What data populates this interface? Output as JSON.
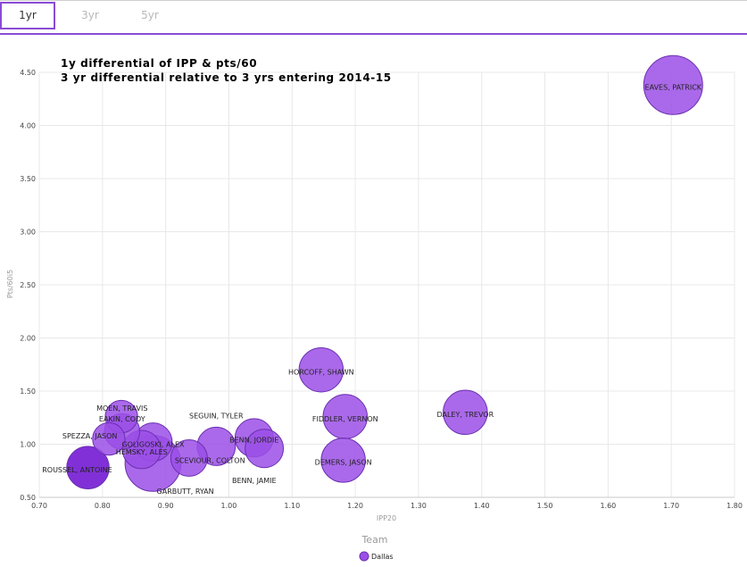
{
  "tabs": [
    {
      "label": "1yr",
      "active": true
    },
    {
      "label": "3yr",
      "active": false
    },
    {
      "label": "5yr",
      "active": false
    }
  ],
  "colors": {
    "accent": "#8a4bd6",
    "bubble_fill": "#9b4fe6",
    "bubble_stroke": "#6a2fb0",
    "bubble_dark": "#7a25d6"
  },
  "chart_data": {
    "type": "scatter",
    "title": "1y differential of IPP & pts/60",
    "subtitle": "3 yr differential relative to 3 yrs entering 2014-15",
    "xlabel": "IPP20",
    "ylabel": "Pts/60i5",
    "xlim": [
      0.7,
      1.8
    ],
    "ylim": [
      0.5,
      4.5
    ],
    "xticks": [
      "0.70",
      "0.80",
      "0.90",
      "1.00",
      "1.10",
      "1.20",
      "1.30",
      "1.40",
      "1.50",
      "1.60",
      "1.70",
      "1.80"
    ],
    "yticks": [
      "0.50",
      "1.00",
      "1.50",
      "2.00",
      "2.50",
      "3.00",
      "3.50",
      "4.00",
      "4.50"
    ],
    "grid": true,
    "legend": {
      "title": "Team",
      "placement": "bottom-center",
      "entries": [
        "Dallas"
      ]
    },
    "series": [
      {
        "name": "Dallas",
        "points": [
          {
            "label": "EAVES, PATRICK",
            "x": 1.703,
            "y": 4.38,
            "size": 1.0
          },
          {
            "label": "HORCOFF, SHAWN",
            "x": 1.146,
            "y": 1.7,
            "size": 0.75
          },
          {
            "label": "DALEY, TREVOR",
            "x": 1.374,
            "y": 1.3,
            "size": 0.75
          },
          {
            "label": "FIDDLER, VERNON",
            "x": 1.184,
            "y": 1.26,
            "size": 0.75
          },
          {
            "label": "DEMERS, JASON",
            "x": 1.181,
            "y": 0.85,
            "size": 0.75
          },
          {
            "label": "SEGUIN, TYLER",
            "x": 1.04,
            "y": 1.06,
            "size": 0.65
          },
          {
            "label": "BENN, JORDIE",
            "x": 1.056,
            "y": 0.96,
            "size": 0.65
          },
          {
            "label": "BENN, JAMIE",
            "x": 0.98,
            "y": 0.98,
            "size": 0.65
          },
          {
            "label": "SCEVIOUR, COLTON",
            "x": 0.937,
            "y": 0.87,
            "size": 0.62
          },
          {
            "label": "GARBUTT, RYAN",
            "x": 0.88,
            "y": 0.82,
            "size": 0.95
          },
          {
            "label": "GOLIGOSKI, ALEX",
            "x": 0.88,
            "y": 1.02,
            "size": 0.65
          },
          {
            "label": "HEMSKY, ALES",
            "x": 0.862,
            "y": 0.95,
            "size": 0.65
          },
          {
            "label": "MOEN, TRAVIS",
            "x": 0.83,
            "y": 1.26,
            "size": 0.55
          },
          {
            "label": "EAKIN, CODY",
            "x": 0.831,
            "y": 1.12,
            "size": 0.6
          },
          {
            "label": "SPEZZA, JASON",
            "x": 0.81,
            "y": 1.05,
            "size": 0.55
          },
          {
            "label": "ROUSSEL, ANTOINE",
            "x": 0.777,
            "y": 0.78,
            "size": 0.72,
            "dark": true
          }
        ]
      }
    ]
  }
}
